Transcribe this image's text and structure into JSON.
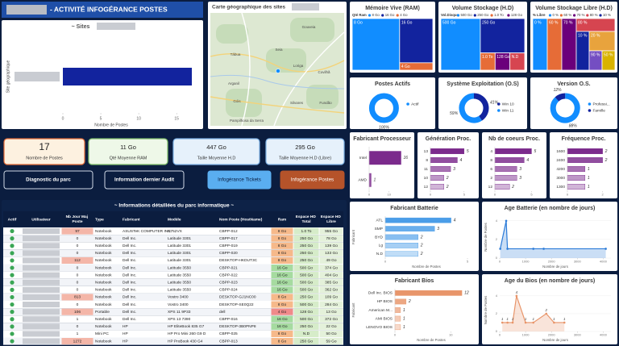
{
  "header": {
    "title": "- ACTIVITÉ INFOGÉRANCE POSTES"
  },
  "sites": {
    "type": "bar",
    "title": "~ Sites",
    "y_label": "Site géographique",
    "x_label": "Nombre de Postes",
    "categories": [
      null
    ],
    "values": [
      17
    ],
    "color": "#12239e",
    "xlim": [
      0,
      17
    ],
    "xticks": [
      0,
      5,
      10,
      15
    ]
  },
  "map": {
    "title": "Carte géographique des sites",
    "places": [
      "Gouveia",
      "Tábua",
      "Loriga",
      "Seia",
      "Covilhã",
      "Arganil",
      "Góis",
      "Silvares",
      "Fundão",
      "Pampilhosa da Serra"
    ]
  },
  "kpis": [
    {
      "value": "17",
      "label": "Nombre de Postes"
    },
    {
      "value": "11 Go",
      "label": "Qté Moyenne RAM"
    },
    {
      "value": "447 Go",
      "label": "Taille Moyenne H.D"
    },
    {
      "value": "295 Go",
      "label": "Taille Moyenne H.D (Libre)"
    }
  ],
  "buttons": [
    "Diagnostic du parc",
    "Information dernier Audit",
    "Infogérance Tickets",
    "Infogérance Postes"
  ],
  "table": {
    "title": "~ Informations détaillées du parc informatique ~",
    "headers": [
      "Actif",
      "Utilisateur",
      "Nb Jour Maj Poste",
      "Type",
      "Fabricant",
      "Modèle",
      "Nom Poste (HostName)",
      "Ram",
      "Espace HD Total",
      "Espace HD Libre"
    ],
    "rows": [
      [
        97,
        "Notebook",
        "ASUSTeK COMPUTER INC.",
        "N752VX",
        "CBPP-012",
        "8 Go",
        "1.0 To",
        "955 Go"
      ],
      [
        0,
        "Notebook",
        "Dell Inc.",
        "Latitude 3301",
        "CBPP-017",
        "8 Go",
        "250 Go",
        "78 Go"
      ],
      [
        0,
        "Notebook",
        "Dell Inc.",
        "Latitude 3301",
        "CBPP-019",
        "8 Go",
        "250 Go",
        "139 Go"
      ],
      [
        0,
        "Notebook",
        "Dell Inc.",
        "Latitude 3301",
        "CBPP-020",
        "8 Go",
        "250 Go",
        "133 Go"
      ],
      [
        112,
        "Notebook",
        "Dell Inc.",
        "Latitude 3301",
        "DESKTOP-HKDUT3C",
        "8 Go",
        "250 Go",
        "49 Go"
      ],
      [
        0,
        "Notebook",
        "Dell Inc.",
        "Latitude 3550",
        "CBPP-021",
        "16 Go",
        "500 Go",
        "374 Go"
      ],
      [
        0,
        "Notebook",
        "Dell Inc.",
        "Latitude 3550",
        "CBPP-022",
        "16 Go",
        "500 Go",
        "404 Go"
      ],
      [
        0,
        "Notebook",
        "Dell Inc.",
        "Latitude 3550",
        "CBPP-023",
        "16 Go",
        "500 Go",
        "385 Go"
      ],
      [
        0,
        "Notebook",
        "Dell Inc.",
        "Latitude 3550",
        "CBPP-024",
        "16 Go",
        "500 Go",
        "362 Go"
      ],
      [
        813,
        "Notebook",
        "Dell Inc.",
        "Vostro 3400",
        "DESKTOP-GJ1NC00",
        "8 Go",
        "250 Go",
        "109 Go"
      ],
      [
        0,
        "Notebook",
        "Dell Inc.",
        "Vostro 3400",
        "DESKTOP-SE0Q22",
        "8 Go",
        "500 Go",
        "284 Go"
      ],
      [
        106,
        "Portable",
        "Dell Inc.",
        "XPS 11 9P33",
        "dell",
        "4 Go",
        "128 Go",
        "13 Go"
      ],
      [
        1,
        "Notebook",
        "Dell Inc.",
        "XPS 13 7390",
        "CBPP-016",
        "16 Go",
        "500 Go",
        "372 Go"
      ],
      [
        0,
        "Notebook",
        "HP",
        "HP EliteBook 835 G7",
        "DESKTOP-3B0PNP8",
        "16 Go",
        "250 Go",
        "22 Go"
      ],
      [
        1,
        "Mini PC",
        "HP",
        "HP Pro Mini 260 G9 D",
        "CBPP-025",
        "8 Go",
        "N.D",
        "50 Go"
      ],
      [
        1272,
        "Notebook",
        "HP",
        "HP ProBook 430 G4",
        "CBPP-013",
        "8 Go",
        "250 Go",
        "59 Go"
      ]
    ]
  },
  "ram": {
    "type": "treemap",
    "title": "Mémoire Vive (RAM)",
    "legend_title": "Qté Ram",
    "items": [
      {
        "name": "8 Go",
        "value": 10,
        "color": "#118dff"
      },
      {
        "name": "16 Go",
        "value": 6,
        "color": "#12239e"
      },
      {
        "name": "4 Go",
        "value": 1,
        "color": "#e66c37"
      }
    ]
  },
  "hd": {
    "type": "treemap",
    "title": "Volume Stockage (H.D)",
    "legend_title": "Vol.Disque",
    "items": [
      {
        "name": "500 Go",
        "value": 8,
        "color": "#118dff"
      },
      {
        "name": "250 Go",
        "value": 6,
        "color": "#12239e"
      },
      {
        "name": "1.0 To",
        "value": 1,
        "color": "#e66c37"
      },
      {
        "name": "128 Go",
        "value": 1,
        "color": "#6b007b"
      },
      {
        "name": "N.D",
        "value": 1,
        "color": "#d64550"
      }
    ]
  },
  "hdl": {
    "type": "treemap",
    "title": "Volume Stockage Libre (H.D)",
    "legend_title": "% Libre",
    "items": [
      {
        "name": "0 %",
        "value": 3,
        "color": "#118dff"
      },
      {
        "name": "60 %",
        "value": 3,
        "color": "#e66c37"
      },
      {
        "name": "70 %",
        "value": 3,
        "color": "#6b007b"
      },
      {
        "name": "80 %",
        "value": 2,
        "color": "#d64550"
      },
      {
        "name": "10 %",
        "value": 2,
        "color": "#12239e"
      },
      {
        "name": "20 %",
        "value": 2,
        "color": "#e8a33d"
      },
      {
        "name": "90 %",
        "value": 1,
        "color": "#744ec2"
      },
      {
        "name": "50 %",
        "value": 1,
        "color": "#d9b300"
      }
    ]
  },
  "actifs": {
    "type": "donut",
    "title": "Postes Actifs",
    "items": [
      {
        "name": "Actif",
        "value": 100,
        "label": "100%",
        "color": "#118dff"
      }
    ]
  },
  "os": {
    "type": "donut",
    "title": "Système Exploitation (O.S)",
    "items": [
      {
        "name": "Win 10",
        "value": 41,
        "label": "41%",
        "color": "#12239e"
      },
      {
        "name": "Win 11",
        "value": 59,
        "label": "59%",
        "color": "#118dff"
      }
    ]
  },
  "version": {
    "type": "donut",
    "title": "Version O.S.",
    "items": [
      {
        "name": "Professi...",
        "value": 88,
        "label": "88%",
        "color": "#118dff"
      },
      {
        "name": "Famille",
        "value": 12,
        "label": "12%",
        "color": "#12239e"
      }
    ]
  },
  "proc": {
    "type": "hbar",
    "title": "Fabricant Processeur",
    "categories": [
      "Intel",
      "AMD"
    ],
    "values": [
      16,
      1
    ],
    "color": "#7b2a8c",
    "xlim": [
      0,
      17
    ],
    "xticks": [
      0,
      10
    ]
  },
  "gen": {
    "type": "hbar",
    "title": "Génération Proc.",
    "categories": [
      "13",
      "8",
      "11",
      "10",
      "12"
    ],
    "values": [
      5,
      4,
      3,
      2,
      2
    ],
    "color": "#7b2a8c",
    "xlim": [
      0,
      5.5
    ],
    "xticks": [
      0,
      5
    ]
  },
  "cores": {
    "type": "hbar",
    "title": "Nb de coeurs Proc.",
    "categories": [
      "4",
      "8",
      "6",
      "2",
      "12"
    ],
    "values": [
      5,
      4,
      3,
      3,
      2
    ],
    "color": "#7b2a8c",
    "xlim": [
      0,
      5.5
    ],
    "xticks": [
      0,
      5
    ]
  },
  "freq": {
    "type": "hbar",
    "title": "Fréquence Proc.",
    "categories": [
      "1600",
      "2400",
      "4200",
      "3000",
      "1300"
    ],
    "values": [
      2,
      2,
      1,
      1,
      1
    ],
    "color": "#7b2a8c",
    "xlim": [
      0,
      2.2
    ],
    "xticks": [
      0,
      2
    ]
  },
  "battery": {
    "type": "hbar",
    "title": "Fabricant Batterie",
    "y_label": "Fabricant",
    "x_label": "Nombre de Postes",
    "categories": [
      "ATL",
      "SMP",
      "BYD",
      "Lg",
      "N.D"
    ],
    "values": [
      4,
      3,
      2,
      2,
      2
    ],
    "color": "#4a9de8",
    "xlim": [
      0,
      5
    ],
    "xticks": [
      0,
      5
    ]
  },
  "battery_age": {
    "type": "line",
    "title": "Age Batterie (en nombre de jours)",
    "y_label": "Nombre de Postes",
    "x_label": "Nombre de jours",
    "x": [
      20,
      250,
      300,
      1300,
      1700,
      4100
    ],
    "values": [
      1,
      4,
      1,
      1,
      1,
      1
    ],
    "color": "#2b7bd8",
    "xlim": [
      0,
      4300
    ],
    "xticks": [
      0,
      1000,
      2000,
      3000,
      4000
    ],
    "ylim": [
      0,
      4.5
    ],
    "yticks": [
      0,
      2,
      4
    ],
    "show_labels": false
  },
  "bios": {
    "type": "hbar",
    "title": "Fabricant Bios",
    "y_label": "Fabricant",
    "x_label": "Nombre de Postes",
    "categories": [
      "Dell Inc. BIOS",
      "HP BIOS",
      "American M...",
      "AMI BIOS",
      "LENOVO BIOS"
    ],
    "values": [
      12,
      2,
      1,
      1,
      1
    ],
    "color": "#e8956a",
    "xlim": [
      0,
      13
    ],
    "xticks": [
      0,
      10
    ]
  },
  "bios_age": {
    "type": "line",
    "title": "Age du Bios (en nombre de jours)",
    "y_label": "Nombre de Postes",
    "x_label": "Nombre de jours",
    "x": [
      100,
      300,
      500,
      650,
      1000,
      1300,
      1800,
      2100,
      2500
    ],
    "values": [
      1,
      1,
      1,
      4,
      1,
      1,
      2,
      1,
      1
    ],
    "color": "#e8956a",
    "xlim": [
      0,
      4300
    ],
    "xticks": [
      0,
      1000,
      2000,
      3000,
      4000
    ],
    "ylim": [
      0,
      4.8
    ],
    "yticks": [
      0,
      2,
      4
    ],
    "show_labels": true
  }
}
